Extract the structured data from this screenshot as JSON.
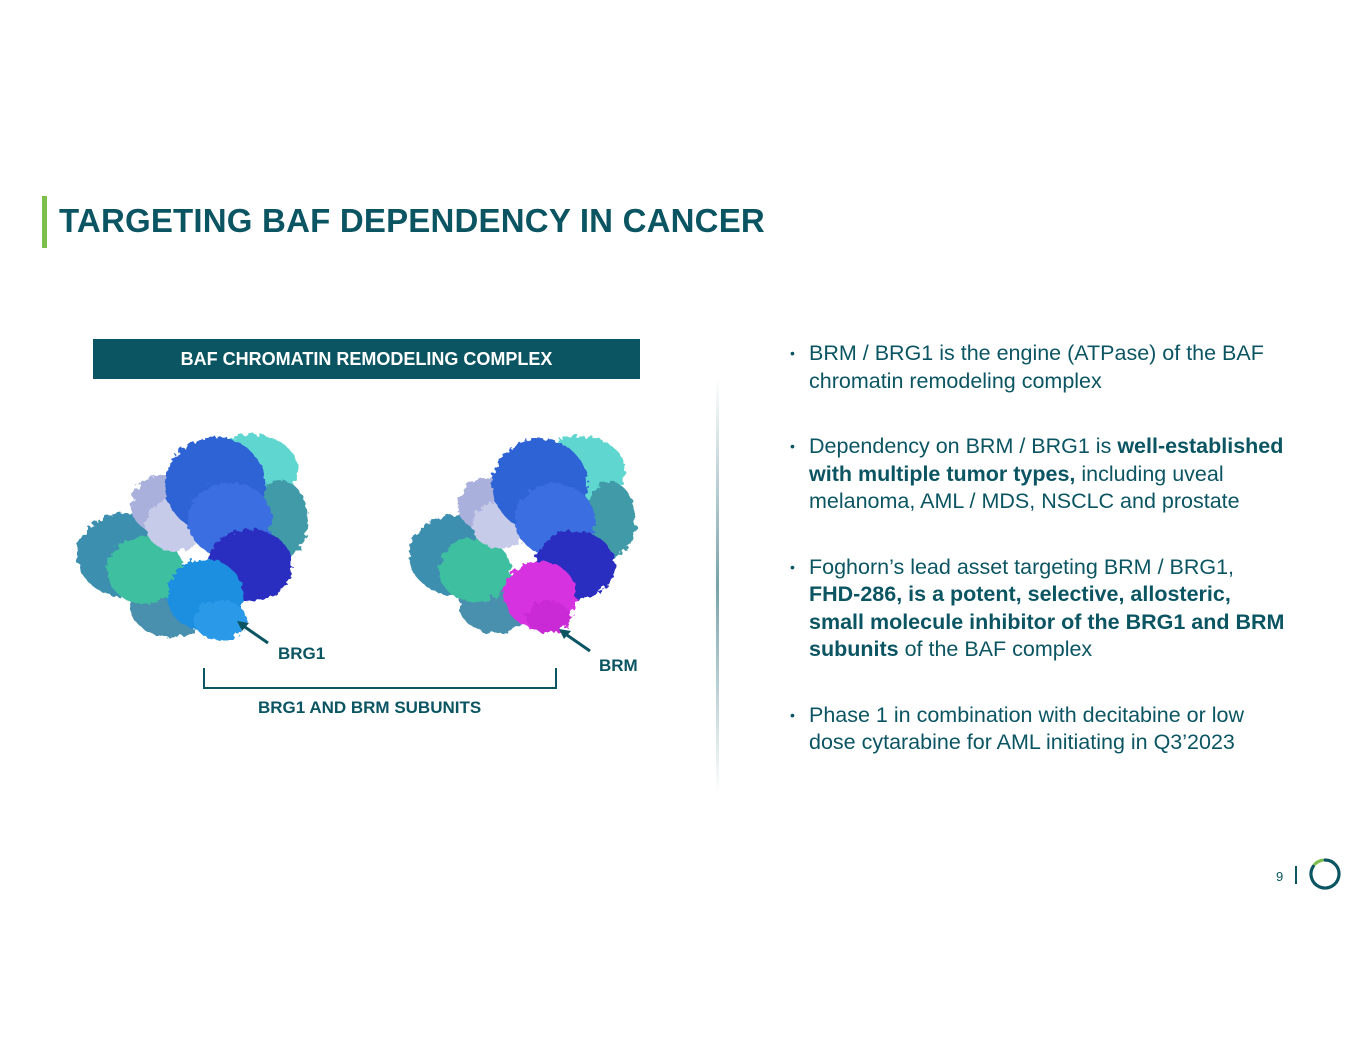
{
  "slide": {
    "title": "TARGETING BAF DEPENDENCY IN CANCER",
    "page_number": "9"
  },
  "figure": {
    "header": "BAF CHROMATIN REMODELING COMPLEX",
    "label_left": "BRG1",
    "label_right": "BRM",
    "bracket_label": "BRG1 AND BRM SUBUNITS"
  },
  "bullets": [
    {
      "parts": [
        {
          "text": "BRM / BRG1 is the engine (ATPase) of the BAF chromatin remodeling complex",
          "bold": false
        }
      ]
    },
    {
      "parts": [
        {
          "text": "Dependency on BRM / BRG1 is ",
          "bold": false
        },
        {
          "text": "well-established with multiple tumor types,",
          "bold": true
        },
        {
          "text": " including uveal melanoma, AML / MDS, NSCLC and prostate",
          "bold": false
        }
      ]
    },
    {
      "parts": [
        {
          "text": "Foghorn’s lead asset targeting BRM / BRG1, ",
          "bold": false
        },
        {
          "text": "FHD-286, is a potent, selective, allosteric, small molecule inhibitor of the BRG1 and BRM subunits",
          "bold": true
        },
        {
          "text": " of the BAF complex",
          "bold": false
        }
      ]
    },
    {
      "parts": [
        {
          "text": "Phase 1 in combination with decitabine or low dose cytarabine for AML initiating in Q3’2023",
          "bold": false
        }
      ]
    }
  ],
  "colors": {
    "primary": "#0b5563",
    "accent": "#7cc04b",
    "highlight_subunit": "#d633e0"
  }
}
